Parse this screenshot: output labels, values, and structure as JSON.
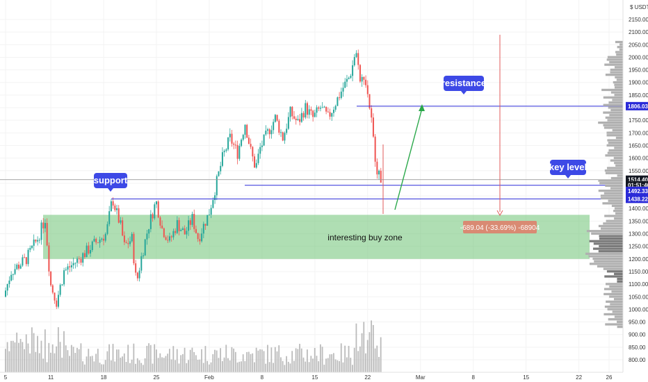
{
  "currency_label": "USDT",
  "colors": {
    "up": "#26a69a",
    "down": "#ef5350",
    "level_line": "#2a2ad8",
    "callout_bg": "#3d49e6",
    "zone_fill": "#6ec375",
    "measure_bg": "#d98a73",
    "measure_line": "#e05a5a",
    "arrow": "#2aa84a",
    "volume_bar": "#9e9e9e",
    "profile_bar": "#b0b0b0"
  },
  "annotations": {
    "support": {
      "label": "support",
      "price": 1438.22
    },
    "resistance": {
      "label": "resistance",
      "price": 1806.03
    },
    "key_level": {
      "label": "key level",
      "price": 1492.33
    },
    "buy_zone": {
      "label": "interesting buy zone",
      "top": 1375,
      "bottom": 1200
    },
    "measure": {
      "label": "-689.04 (-33.69%) -68904"
    }
  },
  "price_badges": [
    {
      "text": "1806.03",
      "price": 1806.03,
      "style": "level"
    },
    {
      "text": "1514.40",
      "price": 1514.4,
      "style": "dark"
    },
    {
      "text": "01:51:40",
      "price": 1492.33,
      "style": "dark"
    },
    {
      "text": "1492.33",
      "price": 1470,
      "style": "level"
    },
    {
      "text": "1438.22",
      "price": 1438.22,
      "style": "level"
    }
  ],
  "chart_data": {
    "type": "candlestick",
    "ylim": [
      750,
      2170
    ],
    "y_ticks": [
      800,
      850,
      900,
      950,
      1000,
      1050,
      1100,
      1150,
      1200,
      1250,
      1300,
      1350,
      1400,
      1450,
      1500,
      1550,
      1600,
      1650,
      1700,
      1750,
      1800,
      1850,
      1900,
      1950,
      2000,
      2050,
      2100,
      2150
    ],
    "y_tick_labels": [
      "800.00",
      "850.00",
      "900.00",
      "950.00",
      "1000.00",
      "1050.00",
      "1100.00",
      "1150.00",
      "1200.00",
      "1250.00",
      "1300.00",
      "1350.00",
      "1400.00",
      "1450.00",
      "1500.00",
      "1550.00",
      "1600.00",
      "1650.00",
      "1700.00",
      "1750.00",
      "1800.00",
      "1850.00",
      "1900.00",
      "1950.00",
      "2000.00",
      "2050.00",
      "2100.00",
      "2150.00"
    ],
    "x_ticks": [
      {
        "label": "5",
        "day": 0
      },
      {
        "label": "11",
        "day": 6
      },
      {
        "label": "18",
        "day": 13
      },
      {
        "label": "25",
        "day": 20
      },
      {
        "label": "Feb",
        "day": 27
      },
      {
        "label": "8",
        "day": 34
      },
      {
        "label": "15",
        "day": 41
      },
      {
        "label": "22",
        "day": 48
      },
      {
        "label": "Mar",
        "day": 55
      },
      {
        "label": "8",
        "day": 62
      },
      {
        "label": "15",
        "day": 69
      },
      {
        "label": "22",
        "day": 76
      },
      {
        "label": "26",
        "day": 80
      }
    ],
    "keypoints": [
      [
        0,
        1050
      ],
      [
        1,
        1150
      ],
      [
        3,
        1200
      ],
      [
        4.5,
        1280
      ],
      [
        5.5,
        1360
      ],
      [
        6.2,
        1100
      ],
      [
        7,
        1030
      ],
      [
        8,
        1150
      ],
      [
        10,
        1200
      ],
      [
        12,
        1260
      ],
      [
        13.6,
        1300
      ],
      [
        14.4,
        1440
      ],
      [
        15.5,
        1330
      ],
      [
        16,
        1250
      ],
      [
        17,
        1280
      ],
      [
        17.6,
        1100
      ],
      [
        18.2,
        1200
      ],
      [
        19.2,
        1330
      ],
      [
        20.2,
        1430
      ],
      [
        21,
        1320
      ],
      [
        22,
        1270
      ],
      [
        23,
        1340
      ],
      [
        24,
        1300
      ],
      [
        25,
        1360
      ],
      [
        25.8,
        1280
      ],
      [
        26.6,
        1340
      ],
      [
        27.2,
        1380
      ],
      [
        28.2,
        1500
      ],
      [
        29,
        1600
      ],
      [
        30,
        1680
      ],
      [
        31,
        1620
      ],
      [
        32,
        1740
      ],
      [
        32.8,
        1620
      ],
      [
        33.4,
        1560
      ],
      [
        34,
        1640
      ],
      [
        35,
        1700
      ],
      [
        36,
        1760
      ],
      [
        37,
        1680
      ],
      [
        38,
        1780
      ],
      [
        39,
        1740
      ],
      [
        40,
        1800
      ],
      [
        41,
        1760
      ],
      [
        42,
        1800
      ],
      [
        43,
        1760
      ],
      [
        44,
        1820
      ],
      [
        45,
        1880
      ],
      [
        45.8,
        1920
      ],
      [
        46.2,
        1960
      ],
      [
        46.6,
        2020
      ],
      [
        47,
        1990
      ],
      [
        47.3,
        1880
      ],
      [
        47.7,
        1940
      ],
      [
        48.3,
        1850
      ],
      [
        48.7,
        1760
      ],
      [
        49.1,
        1640
      ],
      [
        49.5,
        1560
      ],
      [
        49.8,
        1520
      ]
    ],
    "volume_max": 1
  }
}
